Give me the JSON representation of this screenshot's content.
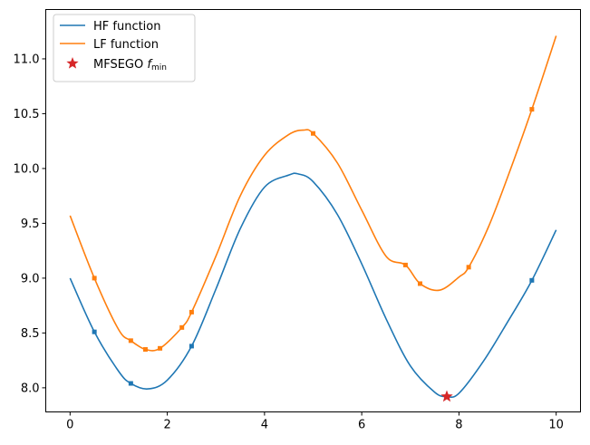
{
  "chart_data": {
    "type": "line",
    "title": "",
    "xlabel": "",
    "ylabel": "",
    "xlim": [
      -0.5,
      10.5
    ],
    "ylim": [
      7.78,
      11.45
    ],
    "xticks": [
      0,
      2,
      4,
      6,
      8,
      10
    ],
    "yticks": [
      8.0,
      8.5,
      9.0,
      9.5,
      10.0,
      10.5,
      11.0
    ],
    "ytick_labels": [
      "8.0",
      "8.5",
      "9.0",
      "9.5",
      "10.0",
      "10.5",
      "11.0"
    ],
    "grid": false,
    "legend_position": "top-left",
    "series": [
      {
        "name": "HF function",
        "color": "#1f77b4",
        "x": [
          0,
          0.5,
          1.0,
          1.25,
          1.6,
          2.0,
          2.5,
          3.0,
          3.5,
          4.0,
          4.5,
          4.7,
          5.0,
          5.5,
          6.0,
          6.5,
          7.0,
          7.5,
          7.75,
          8.0,
          8.5,
          9.0,
          9.5,
          10.0
        ],
        "y": [
          9.0,
          8.51,
          8.15,
          8.04,
          7.99,
          8.07,
          8.38,
          8.9,
          9.45,
          9.83,
          9.94,
          9.95,
          9.88,
          9.58,
          9.13,
          8.63,
          8.2,
          7.96,
          7.92,
          7.95,
          8.24,
          8.6,
          8.98,
          9.44
        ]
      },
      {
        "name": "LF function",
        "color": "#ff7f0e",
        "x": [
          0,
          0.5,
          1.0,
          1.25,
          1.55,
          1.85,
          2.3,
          2.5,
          3.0,
          3.5,
          4.0,
          4.5,
          4.8,
          5.0,
          5.5,
          6.0,
          6.5,
          6.9,
          7.2,
          7.6,
          8.0,
          8.2,
          8.6,
          9.0,
          9.5,
          10.0
        ],
        "y": [
          9.57,
          9.0,
          8.53,
          8.43,
          8.35,
          8.36,
          8.55,
          8.69,
          9.2,
          9.75,
          10.12,
          10.31,
          10.35,
          10.32,
          10.05,
          9.62,
          9.2,
          9.12,
          8.95,
          8.89,
          9.01,
          9.1,
          9.46,
          9.92,
          10.54,
          11.21
        ]
      }
    ],
    "sample_points": [
      {
        "series": "HF function",
        "x": [
          0.5,
          1.25,
          2.5,
          9.5
        ],
        "y": [
          8.51,
          8.04,
          8.38,
          8.98
        ]
      },
      {
        "series": "LF function",
        "x": [
          0.5,
          1.25,
          1.55,
          1.85,
          2.3,
          2.5,
          5.0,
          6.9,
          7.2,
          8.2,
          9.5
        ],
        "y": [
          9.0,
          8.43,
          8.35,
          8.36,
          8.55,
          8.69,
          10.32,
          9.12,
          8.95,
          9.1,
          10.54
        ]
      }
    ],
    "optimum": {
      "name": "MFSEGO f_min",
      "legend_text": "MFSEGO ",
      "legend_subscript": "min",
      "legend_italic": "f",
      "color": "#d62728",
      "x": 7.75,
      "y": 7.92
    }
  }
}
